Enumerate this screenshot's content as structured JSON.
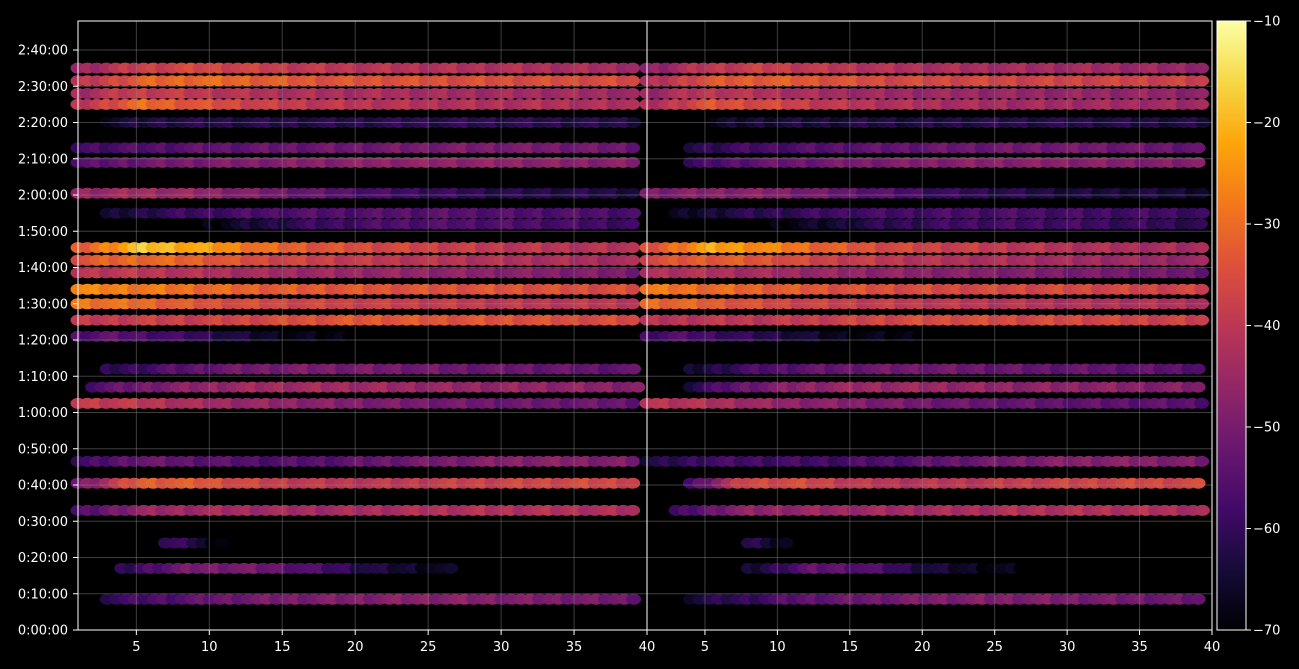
{
  "chart_data": {
    "type": "heatmap",
    "title": "",
    "colormap": "inferno",
    "background": "#000000",
    "grid": true,
    "grid_color": "#8a8a8a",
    "y_axis": {
      "label": "",
      "range_seconds": [
        0,
        10080
      ],
      "ticks": [
        "0:00:00",
        "0:10:00",
        "0:20:00",
        "0:30:00",
        "0:40:00",
        "0:50:00",
        "1:00:00",
        "1:10:00",
        "1:20:00",
        "1:30:00",
        "1:40:00",
        "1:50:00",
        "2:00:00",
        "2:10:00",
        "2:20:00",
        "2:30:00",
        "2:40:00"
      ]
    },
    "panels": [
      {
        "name": "",
        "x_range": [
          1,
          40
        ],
        "x_ticks": [
          "5",
          "10",
          "15",
          "20",
          "25",
          "30",
          "35",
          "40"
        ],
        "bands": [
          {
            "t": 8.5,
            "x0": 3,
            "x1": 39.5,
            "values": [
              -60,
              -56,
              -52,
              -50,
              -49,
              -48,
              -48,
              -49,
              -50,
              -52
            ]
          },
          {
            "t": 17,
            "x0": 4,
            "x1": 27,
            "values": [
              -62,
              -55,
              -50,
              -50,
              -52,
              -56,
              -60,
              -64,
              -66,
              -68
            ]
          },
          {
            "t": 24,
            "x0": 7,
            "x1": 11,
            "values": [
              -62,
              -58,
              -56,
              -58,
              -62,
              -66,
              -68,
              -69,
              -69,
              -69
            ]
          },
          {
            "t": 33,
            "x0": 1,
            "x1": 39.5,
            "values": [
              -58,
              -46,
              -44,
              -44,
              -44,
              -43,
              -42,
              -42,
              -42,
              -43
            ]
          },
          {
            "t": 40.5,
            "x0": 1,
            "x1": 39.5,
            "values": [
              -52,
              -32,
              -33,
              -38,
              -40,
              -40,
              -38,
              -37,
              -36,
              -37
            ]
          },
          {
            "t": 46.5,
            "x0": 1,
            "x1": 39.5,
            "values": [
              -60,
              -52,
              -54,
              -56,
              -55,
              -52,
              -50,
              -48,
              -48,
              -50
            ]
          },
          {
            "t": 62.5,
            "x0": 1,
            "x1": 39.5,
            "values": [
              -38,
              -40,
              -44,
              -46,
              -48,
              -50,
              -51,
              -52,
              -52,
              -53
            ]
          },
          {
            "t": 67,
            "x0": 2,
            "x1": 39.5,
            "values": [
              -56,
              -50,
              -46,
              -44,
              -44,
              -45,
              -46,
              -46,
              -47,
              -48
            ]
          },
          {
            "t": 72,
            "x0": 3,
            "x1": 39.5,
            "values": [
              -62,
              -56,
              -52,
              -50,
              -50,
              -51,
              -52,
              -52,
              -53,
              -54
            ]
          },
          {
            "t": 81,
            "x0": 1,
            "x1": 20,
            "values": [
              -56,
              -54,
              -56,
              -58,
              -60,
              -63,
              -66,
              -68,
              -69,
              -69
            ]
          },
          {
            "t": 85.5,
            "x0": 1,
            "x1": 39.5,
            "values": [
              -40,
              -38,
              -38,
              -36,
              -34,
              -33,
              -34,
              -34,
              -35,
              -36
            ]
          },
          {
            "t": 90,
            "x0": 1,
            "x1": 39.5,
            "values": [
              -28,
              -30,
              -34,
              -36,
              -37,
              -38,
              -39,
              -40,
              -40,
              -40
            ]
          },
          {
            "t": 94,
            "x0": 1,
            "x1": 39.5,
            "values": [
              -26,
              -28,
              -30,
              -32,
              -33,
              -34,
              -34,
              -34,
              -35,
              -35
            ]
          },
          {
            "t": 98.5,
            "x0": 1,
            "x1": 39.5,
            "values": [
              -40,
              -40,
              -42,
              -44,
              -45,
              -46,
              -47,
              -48,
              -49,
              -50
            ]
          },
          {
            "t": 102,
            "x0": 1,
            "x1": 39.5,
            "values": [
              -34,
              -30,
              -32,
              -36,
              -38,
              -40,
              -41,
              -42,
              -43,
              -44
            ]
          },
          {
            "t": 105.5,
            "x0": 1,
            "x1": 39.5,
            "values": [
              -34,
              -18,
              -22,
              -30,
              -34,
              -36,
              -38,
              -40,
              -41,
              -42
            ]
          },
          {
            "t": 112,
            "x0": 10,
            "x1": 39.5,
            "values": [
              -69,
              -64,
              -60,
              -58,
              -56,
              -56,
              -56,
              -57,
              -58,
              -59
            ]
          },
          {
            "t": 115,
            "x0": 3,
            "x1": 39.5,
            "values": [
              -66,
              -60,
              -58,
              -56,
              -56,
              -55,
              -55,
              -56,
              -56,
              -57
            ]
          },
          {
            "t": 120.5,
            "x0": 1,
            "x1": 39.5,
            "values": [
              -46,
              -44,
              -46,
              -50,
              -54,
              -58,
              -60,
              -62,
              -62,
              -63
            ]
          },
          {
            "t": 129,
            "x0": 1,
            "x1": 39.5,
            "values": [
              -56,
              -52,
              -50,
              -49,
              -48,
              -47,
              -47,
              -47,
              -48,
              -48
            ]
          },
          {
            "t": 133,
            "x0": 1,
            "x1": 39.5,
            "values": [
              -58,
              -56,
              -54,
              -53,
              -52,
              -51,
              -50,
              -50,
              -51,
              -52
            ]
          },
          {
            "t": 140,
            "x0": 3,
            "x1": 39.5,
            "values": [
              -66,
              -62,
              -62,
              -62,
              -62,
              -61,
              -61,
              -61,
              -62,
              -62
            ]
          },
          {
            "t": 145,
            "x0": 1,
            "x1": 39.5,
            "values": [
              -42,
              -30,
              -34,
              -38,
              -40,
              -41,
              -42,
              -42,
              -42,
              -43
            ]
          },
          {
            "t": 148,
            "x0": 1,
            "x1": 39.5,
            "values": [
              -44,
              -38,
              -40,
              -42,
              -43,
              -43,
              -44,
              -44,
              -44,
              -45
            ]
          },
          {
            "t": 151.5,
            "x0": 1,
            "x1": 39.5,
            "values": [
              -42,
              -32,
              -30,
              -32,
              -34,
              -34,
              -35,
              -35,
              -35,
              -36
            ]
          },
          {
            "t": 155,
            "x0": 1,
            "x1": 39.5,
            "values": [
              -46,
              -38,
              -36,
              -38,
              -40,
              -41,
              -42,
              -42,
              -43,
              -44
            ]
          }
        ]
      },
      {
        "name": "",
        "x_range": [
          1,
          40
        ],
        "x_ticks": [
          "5",
          "10",
          "15",
          "20",
          "25",
          "30",
          "35",
          "40"
        ],
        "bands": [
          {
            "t": 8.5,
            "x0": 4,
            "x1": 39.5,
            "values": [
              -64,
              -60,
              -54,
              -52,
              -50,
              -49,
              -49,
              -50,
              -51,
              -53
            ]
          },
          {
            "t": 17,
            "x0": 8,
            "x1": 27,
            "values": [
              -66,
              -60,
              -54,
              -54,
              -56,
              -60,
              -64,
              -66,
              -68,
              -69
            ]
          },
          {
            "t": 24,
            "x0": 8,
            "x1": 11,
            "values": [
              -64,
              -60,
              -58,
              -60,
              -64,
              -67,
              -69,
              -69,
              -69,
              -69
            ]
          },
          {
            "t": 33,
            "x0": 3,
            "x1": 39.5,
            "values": [
              -60,
              -48,
              -46,
              -45,
              -44,
              -43,
              -42,
              -42,
              -42,
              -43
            ]
          },
          {
            "t": 40.5,
            "x0": 4,
            "x1": 39.5,
            "values": [
              -58,
              -36,
              -36,
              -40,
              -41,
              -40,
              -38,
              -37,
              -36,
              -37
            ]
          },
          {
            "t": 46.5,
            "x0": 1,
            "x1": 39.5,
            "values": [
              -64,
              -58,
              -58,
              -58,
              -56,
              -53,
              -50,
              -48,
              -48,
              -50
            ]
          },
          {
            "t": 62.5,
            "x0": 1,
            "x1": 39.5,
            "values": [
              -40,
              -42,
              -46,
              -48,
              -50,
              -52,
              -53,
              -54,
              -54,
              -55
            ]
          },
          {
            "t": 67,
            "x0": 4,
            "x1": 39.5,
            "values": [
              -62,
              -52,
              -47,
              -45,
              -45,
              -46,
              -47,
              -47,
              -48,
              -49
            ]
          },
          {
            "t": 72,
            "x0": 4,
            "x1": 39.5,
            "values": [
              -66,
              -58,
              -54,
              -52,
              -51,
              -52,
              -53,
              -53,
              -54,
              -55
            ]
          },
          {
            "t": 81,
            "x0": 1,
            "x1": 20,
            "values": [
              -58,
              -56,
              -58,
              -60,
              -62,
              -64,
              -67,
              -68,
              -69,
              -69
            ]
          },
          {
            "t": 85.5,
            "x0": 1,
            "x1": 39.5,
            "values": [
              -42,
              -40,
              -40,
              -38,
              -36,
              -35,
              -36,
              -36,
              -37,
              -38
            ]
          },
          {
            "t": 90,
            "x0": 1,
            "x1": 39.5,
            "values": [
              -30,
              -32,
              -36,
              -38,
              -39,
              -40,
              -41,
              -42,
              -42,
              -42
            ]
          },
          {
            "t": 94,
            "x0": 1,
            "x1": 39.5,
            "values": [
              -28,
              -30,
              -32,
              -34,
              -35,
              -36,
              -36,
              -36,
              -37,
              -37
            ]
          },
          {
            "t": 98.5,
            "x0": 1,
            "x1": 39.5,
            "values": [
              -42,
              -42,
              -44,
              -46,
              -47,
              -48,
              -49,
              -50,
              -51,
              -52
            ]
          },
          {
            "t": 102,
            "x0": 1,
            "x1": 39.5,
            "values": [
              -36,
              -32,
              -34,
              -38,
              -40,
              -42,
              -43,
              -44,
              -45,
              -46
            ]
          },
          {
            "t": 105.5,
            "x0": 1,
            "x1": 39.5,
            "values": [
              -36,
              -22,
              -26,
              -32,
              -36,
              -38,
              -40,
              -42,
              -43,
              -44
            ]
          },
          {
            "t": 112,
            "x0": 10,
            "x1": 39.5,
            "values": [
              -69,
              -66,
              -62,
              -60,
              -58,
              -58,
              -58,
              -59,
              -60,
              -61
            ]
          },
          {
            "t": 115,
            "x0": 3,
            "x1": 39.5,
            "values": [
              -68,
              -62,
              -60,
              -58,
              -58,
              -57,
              -57,
              -58,
              -58,
              -59
            ]
          },
          {
            "t": 120.5,
            "x0": 1,
            "x1": 39.5,
            "values": [
              -50,
              -48,
              -48,
              -52,
              -56,
              -60,
              -62,
              -64,
              -64,
              -65
            ]
          },
          {
            "t": 129,
            "x0": 4,
            "x1": 39.5,
            "values": [
              -60,
              -54,
              -52,
              -50,
              -49,
              -48,
              -48,
              -48,
              -49,
              -49
            ]
          },
          {
            "t": 133,
            "x0": 4,
            "x1": 39.5,
            "values": [
              -62,
              -58,
              -56,
              -54,
              -53,
              -52,
              -51,
              -51,
              -52,
              -53
            ]
          },
          {
            "t": 140,
            "x0": 5,
            "x1": 39.5,
            "values": [
              -68,
              -64,
              -64,
              -63,
              -63,
              -62,
              -62,
              -62,
              -63,
              -63
            ]
          },
          {
            "t": 145,
            "x0": 1,
            "x1": 39.5,
            "values": [
              -44,
              -34,
              -36,
              -40,
              -42,
              -43,
              -44,
              -44,
              -44,
              -45
            ]
          },
          {
            "t": 148,
            "x0": 1,
            "x1": 39.5,
            "values": [
              -46,
              -40,
              -42,
              -44,
              -45,
              -45,
              -46,
              -46,
              -46,
              -47
            ]
          },
          {
            "t": 151.5,
            "x0": 1,
            "x1": 39.5,
            "values": [
              -44,
              -34,
              -32,
              -34,
              -36,
              -36,
              -37,
              -37,
              -37,
              -38
            ]
          },
          {
            "t": 155,
            "x0": 1,
            "x1": 39.5,
            "values": [
              -48,
              -40,
              -38,
              -40,
              -42,
              -43,
              -44,
              -44,
              -45,
              -46
            ]
          }
        ]
      }
    ],
    "colorbar": {
      "range": [
        -70,
        -10
      ],
      "ticks": [
        "−10",
        "−20",
        "−30",
        "−40",
        "−50",
        "−60",
        "−70"
      ]
    }
  }
}
